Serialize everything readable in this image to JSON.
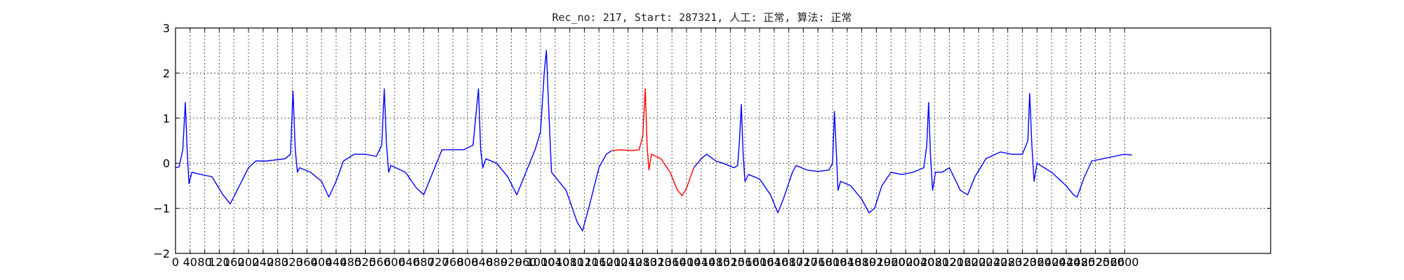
{
  "chart_data": {
    "type": "line",
    "title": "Rec_no: 217, Start: 287321, 人工: 正常, 算法: 正常",
    "xlabel": "",
    "ylabel": "",
    "xlim": [
      0,
      3000
    ],
    "ylim": [
      -2,
      3
    ],
    "grid": true,
    "x_ticks": [
      0,
      40,
      80,
      120,
      160,
      200,
      240,
      280,
      320,
      360,
      400,
      440,
      480,
      520,
      560,
      600,
      640,
      680,
      720,
      760,
      800,
      840,
      880,
      920,
      960,
      1000,
      1040,
      1080,
      1120,
      1160,
      1200,
      1240,
      1280,
      1320,
      1360,
      1400,
      1440,
      1480,
      1520,
      1560,
      1600,
      1640,
      1680,
      1720,
      1760,
      1800,
      1840,
      1880,
      1920,
      1960,
      2000,
      2040,
      2080,
      2120,
      2160,
      2200,
      2240,
      2280,
      2320,
      2360,
      2400,
      2440,
      2480,
      2520,
      2560,
      2600
    ],
    "y_ticks": [
      -2,
      -1,
      0,
      1,
      2,
      3
    ],
    "series": [
      {
        "color": "#0000ff",
        "points": [
          [
            0,
            -0.1
          ],
          [
            10,
            -0.08
          ],
          [
            20,
            0.3
          ],
          [
            27,
            1.35
          ],
          [
            32,
            0.3
          ],
          [
            37,
            -0.45
          ],
          [
            45,
            -0.2
          ],
          [
            70,
            -0.25
          ],
          [
            100,
            -0.3
          ],
          [
            130,
            -0.7
          ],
          [
            150,
            -0.9
          ],
          [
            175,
            -0.5
          ],
          [
            200,
            -0.1
          ],
          [
            220,
            0.05
          ],
          [
            250,
            0.05
          ],
          [
            280,
            0.08
          ],
          [
            300,
            0.1
          ],
          [
            315,
            0.2
          ],
          [
            322,
            1.6
          ],
          [
            328,
            0.3
          ],
          [
            334,
            -0.2
          ],
          [
            340,
            -0.1
          ],
          [
            370,
            -0.2
          ],
          [
            400,
            -0.4
          ],
          [
            420,
            -0.75
          ],
          [
            440,
            -0.4
          ],
          [
            460,
            0.05
          ],
          [
            490,
            0.2
          ],
          [
            520,
            0.2
          ],
          [
            550,
            0.15
          ],
          [
            565,
            0.4
          ],
          [
            572,
            1.65
          ],
          [
            578,
            0.4
          ],
          [
            584,
            -0.2
          ],
          [
            590,
            -0.05
          ],
          [
            630,
            -0.2
          ],
          [
            660,
            -0.55
          ],
          [
            680,
            -0.7
          ],
          [
            700,
            -0.3
          ],
          [
            730,
            0.3
          ],
          [
            760,
            0.3
          ],
          [
            790,
            0.3
          ],
          [
            815,
            0.4
          ],
          [
            830,
            1.65
          ],
          [
            836,
            0.3
          ],
          [
            842,
            -0.1
          ],
          [
            850,
            0.1
          ],
          [
            880,
            0.0
          ],
          [
            910,
            -0.3
          ],
          [
            935,
            -0.7
          ],
          [
            955,
            -0.3
          ],
          [
            985,
            0.3
          ],
          [
            1000,
            0.7
          ],
          [
            1010,
            2.0
          ],
          [
            1016,
            2.5
          ],
          [
            1022,
            1.3
          ],
          [
            1030,
            -0.2
          ],
          [
            1070,
            -0.6
          ],
          [
            1100,
            -1.3
          ],
          [
            1115,
            -1.5
          ],
          [
            1135,
            -0.9
          ],
          [
            1160,
            -0.1
          ],
          [
            1180,
            0.2
          ],
          [
            1195,
            0.28
          ]
        ]
      },
      {
        "color": "#ff0000",
        "points": [
          [
            1195,
            0.28
          ],
          [
            1220,
            0.3
          ],
          [
            1250,
            0.28
          ],
          [
            1270,
            0.3
          ],
          [
            1280,
            0.6
          ],
          [
            1287,
            1.65
          ],
          [
            1292,
            0.4
          ],
          [
            1297,
            -0.15
          ],
          [
            1304,
            0.2
          ],
          [
            1330,
            0.1
          ],
          [
            1355,
            -0.2
          ],
          [
            1375,
            -0.6
          ],
          [
            1388,
            -0.72
          ],
          [
            1400,
            -0.55
          ],
          [
            1420,
            -0.1
          ]
        ]
      },
      {
        "color": "#0000ff",
        "points": [
          [
            1420,
            -0.1
          ],
          [
            1440,
            0.1
          ],
          [
            1455,
            0.2
          ],
          [
            1480,
            0.05
          ],
          [
            1500,
            0.0
          ],
          [
            1530,
            -0.1
          ],
          [
            1540,
            -0.05
          ],
          [
            1545,
            0.5
          ],
          [
            1550,
            1.3
          ],
          [
            1555,
            0.2
          ],
          [
            1560,
            -0.4
          ],
          [
            1570,
            -0.25
          ],
          [
            1600,
            -0.35
          ],
          [
            1630,
            -0.7
          ],
          [
            1650,
            -1.1
          ],
          [
            1665,
            -0.8
          ],
          [
            1690,
            -0.2
          ],
          [
            1700,
            -0.05
          ],
          [
            1730,
            -0.15
          ],
          [
            1760,
            -0.18
          ],
          [
            1790,
            -0.15
          ],
          [
            1800,
            0.0
          ],
          [
            1805,
            1.15
          ],
          [
            1810,
            0.3
          ],
          [
            1815,
            -0.6
          ],
          [
            1822,
            -0.4
          ],
          [
            1850,
            -0.5
          ],
          [
            1880,
            -0.8
          ],
          [
            1900,
            -1.1
          ],
          [
            1915,
            -1.0
          ],
          [
            1935,
            -0.5
          ],
          [
            1960,
            -0.2
          ],
          [
            1990,
            -0.25
          ],
          [
            2020,
            -0.2
          ],
          [
            2050,
            -0.1
          ],
          [
            2058,
            0.4
          ],
          [
            2063,
            1.35
          ],
          [
            2068,
            0.2
          ],
          [
            2074,
            -0.6
          ],
          [
            2082,
            -0.2
          ],
          [
            2100,
            -0.2
          ],
          [
            2120,
            -0.1
          ],
          [
            2150,
            -0.6
          ],
          [
            2170,
            -0.7
          ],
          [
            2190,
            -0.3
          ],
          [
            2220,
            0.1
          ],
          [
            2260,
            0.25
          ],
          [
            2290,
            0.2
          ],
          [
            2320,
            0.2
          ],
          [
            2335,
            0.5
          ],
          [
            2340,
            1.55
          ],
          [
            2346,
            0.4
          ],
          [
            2352,
            -0.4
          ],
          [
            2360,
            0.0
          ],
          [
            2400,
            -0.2
          ],
          [
            2440,
            -0.5
          ],
          [
            2460,
            -0.7
          ],
          [
            2470,
            -0.75
          ],
          [
            2490,
            -0.3
          ],
          [
            2510,
            0.05
          ],
          [
            2540,
            0.1
          ],
          [
            2570,
            0.15
          ],
          [
            2600,
            0.2
          ],
          [
            2620,
            0.18
          ]
        ]
      }
    ]
  }
}
